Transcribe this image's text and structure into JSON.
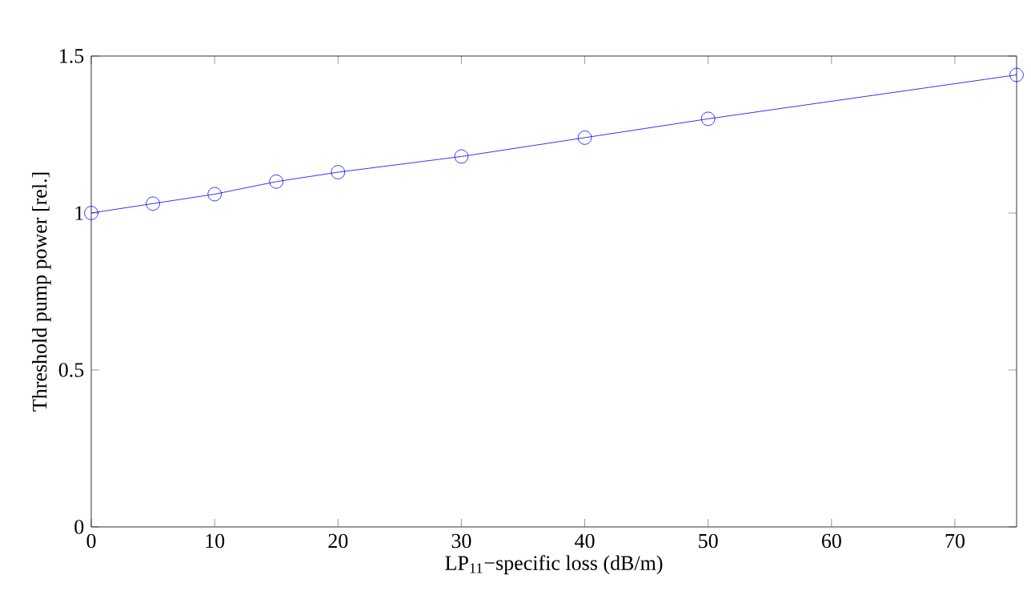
{
  "chart_data": {
    "type": "line",
    "xlabel": "LP$_{11}$−specific loss (dB/m)",
    "ylabel": "Threshold pump power [rel.]",
    "x": [
      0,
      5,
      10,
      15,
      20,
      30,
      40,
      50,
      75
    ],
    "series": [
      {
        "color": "#0000ff",
        "values": [
          1.0,
          1.03,
          1.06,
          1.1,
          1.13,
          1.18,
          1.24,
          1.3,
          1.44
        ]
      }
    ],
    "xlim": [
      0,
      75
    ],
    "ylim": [
      0,
      1.5
    ],
    "xticks": [
      0,
      10,
      20,
      30,
      40,
      50,
      60,
      70
    ],
    "yticks": [
      0,
      0.5,
      1,
      1.5
    ],
    "marker": "circle",
    "line_style": "solid"
  }
}
